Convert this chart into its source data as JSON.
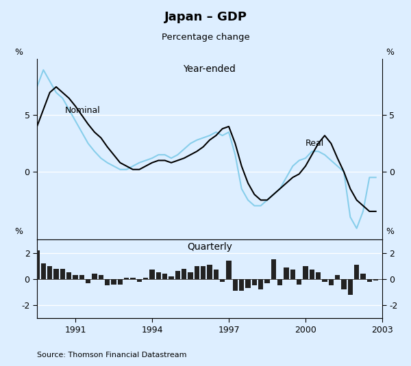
{
  "title": "Japan – GDP",
  "subtitle": "Percentage change",
  "bg_color": "#ddeeff",
  "upper_label": "Year-ended",
  "lower_label": "Quarterly",
  "source": "Source: Thomson Financial Datastream",
  "nominal_color": "#000000",
  "real_color": "#87ceeb",
  "bar_color": "#222222",
  "upper_ylim": [
    -6,
    10
  ],
  "upper_yticks": [
    0,
    5
  ],
  "upper_ytick_labels": [
    "0",
    "5"
  ],
  "lower_ylim": [
    -3,
    3
  ],
  "lower_yticks": [
    -2,
    0,
    2
  ],
  "lower_ytick_labels": [
    "-2",
    "0",
    "2"
  ],
  "xtick_years": [
    1991,
    1994,
    1997,
    2000,
    2003
  ],
  "xmin": 1989.5,
  "xmax": 2003.0,
  "nominal_x": [
    1989.5,
    1989.75,
    1990.0,
    1990.25,
    1990.5,
    1990.75,
    1991.0,
    1991.25,
    1991.5,
    1991.75,
    1992.0,
    1992.25,
    1992.5,
    1992.75,
    1993.0,
    1993.25,
    1993.5,
    1993.75,
    1994.0,
    1994.25,
    1994.5,
    1994.75,
    1995.0,
    1995.25,
    1995.5,
    1995.75,
    1996.0,
    1996.25,
    1996.5,
    1996.75,
    1997.0,
    1997.25,
    1997.5,
    1997.75,
    1998.0,
    1998.25,
    1998.5,
    1998.75,
    1999.0,
    1999.25,
    1999.5,
    1999.75,
    2000.0,
    2000.25,
    2000.5,
    2000.75,
    2001.0,
    2001.25,
    2001.5,
    2001.75,
    2002.0,
    2002.25,
    2002.5,
    2002.75
  ],
  "nominal_y": [
    4.0,
    5.5,
    7.0,
    7.5,
    7.0,
    6.5,
    5.8,
    5.0,
    4.2,
    3.5,
    3.0,
    2.2,
    1.5,
    0.8,
    0.5,
    0.2,
    0.2,
    0.5,
    0.8,
    1.0,
    1.0,
    0.8,
    1.0,
    1.2,
    1.5,
    1.8,
    2.2,
    2.8,
    3.2,
    3.8,
    4.0,
    2.5,
    0.5,
    -1.0,
    -2.0,
    -2.5,
    -2.5,
    -2.0,
    -1.5,
    -1.0,
    -0.5,
    -0.2,
    0.5,
    1.5,
    2.5,
    3.2,
    2.5,
    1.2,
    0.0,
    -1.5,
    -2.5,
    -3.0,
    -3.5,
    -3.5
  ],
  "real_x": [
    1989.5,
    1989.75,
    1990.0,
    1990.25,
    1990.5,
    1990.75,
    1991.0,
    1991.25,
    1991.5,
    1991.75,
    1992.0,
    1992.25,
    1992.5,
    1992.75,
    1993.0,
    1993.25,
    1993.5,
    1993.75,
    1994.0,
    1994.25,
    1994.5,
    1994.75,
    1995.0,
    1995.25,
    1995.5,
    1995.75,
    1996.0,
    1996.25,
    1996.5,
    1996.75,
    1997.0,
    1997.25,
    1997.5,
    1997.75,
    1998.0,
    1998.25,
    1998.5,
    1998.75,
    1999.0,
    1999.25,
    1999.5,
    1999.75,
    2000.0,
    2000.25,
    2000.5,
    2000.75,
    2001.0,
    2001.25,
    2001.5,
    2001.75,
    2002.0,
    2002.25,
    2002.5,
    2002.75
  ],
  "real_y": [
    7.5,
    9.0,
    8.0,
    7.0,
    6.5,
    5.5,
    4.5,
    3.5,
    2.5,
    1.8,
    1.2,
    0.8,
    0.5,
    0.2,
    0.2,
    0.5,
    0.8,
    1.0,
    1.2,
    1.5,
    1.5,
    1.2,
    1.5,
    2.0,
    2.5,
    2.8,
    3.0,
    3.2,
    3.5,
    3.2,
    3.5,
    1.5,
    -1.5,
    -2.5,
    -3.0,
    -3.0,
    -2.5,
    -2.0,
    -1.5,
    -0.5,
    0.5,
    1.0,
    1.2,
    1.8,
    1.8,
    1.5,
    1.0,
    0.5,
    0.0,
    -4.0,
    -5.0,
    -3.5,
    -0.5,
    -0.5
  ],
  "quarterly_x": [
    1989.5,
    1989.75,
    1990.0,
    1990.25,
    1990.5,
    1990.75,
    1991.0,
    1991.25,
    1991.5,
    1991.75,
    1992.0,
    1992.25,
    1992.5,
    1992.75,
    1993.0,
    1993.25,
    1993.5,
    1993.75,
    1994.0,
    1994.25,
    1994.5,
    1994.75,
    1995.0,
    1995.25,
    1995.5,
    1995.75,
    1996.0,
    1996.25,
    1996.5,
    1996.75,
    1997.0,
    1997.25,
    1997.5,
    1997.75,
    1998.0,
    1998.25,
    1998.5,
    1998.75,
    1999.0,
    1999.25,
    1999.5,
    1999.75,
    2000.0,
    2000.25,
    2000.5,
    2000.75,
    2001.0,
    2001.25,
    2001.5,
    2001.75,
    2002.0,
    2002.25,
    2002.5,
    2002.75
  ],
  "quarterly_y": [
    2.2,
    1.2,
    1.0,
    0.8,
    0.8,
    0.5,
    0.3,
    0.3,
    -0.3,
    0.4,
    0.3,
    -0.5,
    -0.4,
    -0.4,
    0.1,
    0.1,
    -0.2,
    0.1,
    0.7,
    0.5,
    0.4,
    0.2,
    0.6,
    0.8,
    0.5,
    1.0,
    1.0,
    1.1,
    0.7,
    -0.2,
    1.4,
    -0.9,
    -0.9,
    -0.7,
    -0.5,
    -0.8,
    -0.3,
    1.5,
    -0.5,
    0.9,
    0.7,
    -0.4,
    1.0,
    0.7,
    0.5,
    -0.2,
    -0.5,
    0.3,
    -0.8,
    -1.2,
    1.1,
    0.4,
    -0.2,
    -0.1
  ]
}
